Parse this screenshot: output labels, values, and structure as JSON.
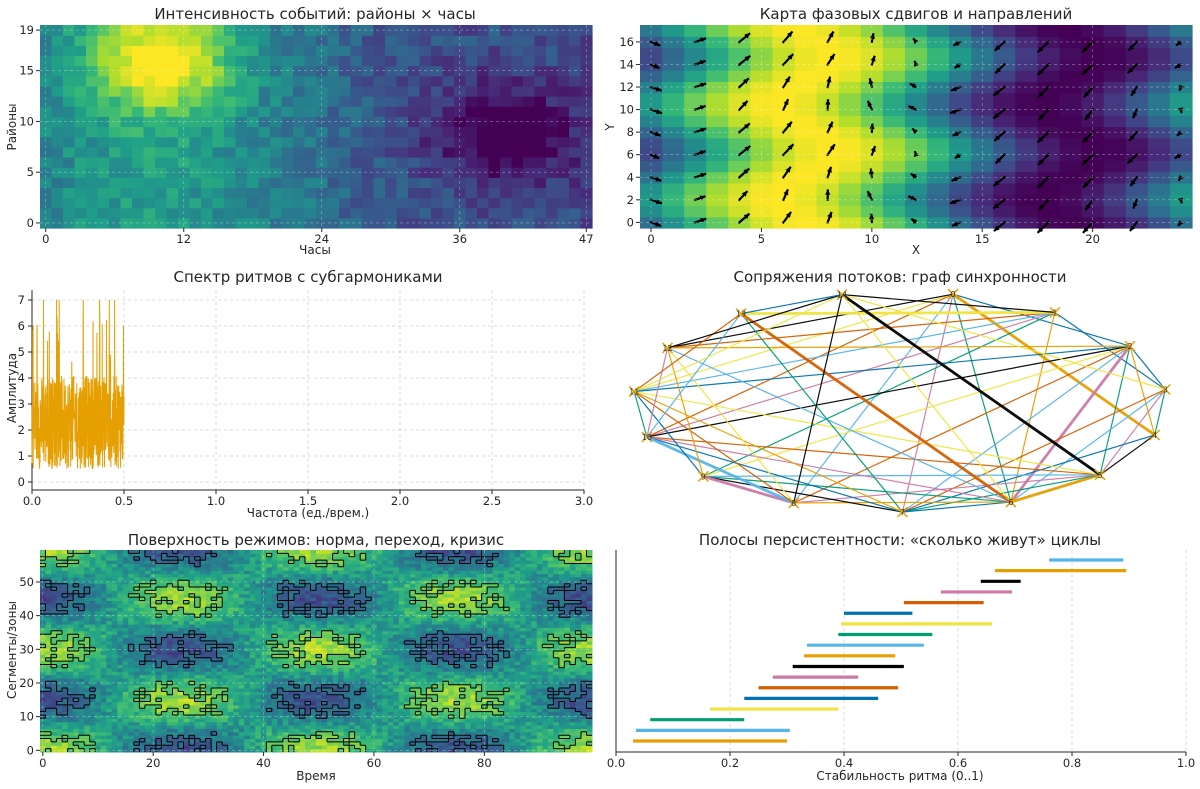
{
  "chart_data": [
    {
      "type": "heatmap",
      "title": "Интенсивность событий: районы × часы",
      "xlabel": "Часы",
      "ylabel": "Районы",
      "xlim": [
        0,
        47
      ],
      "ylim": [
        0,
        19
      ],
      "x_ticks": [
        "0",
        "12",
        "24",
        "36",
        "47"
      ],
      "y_ticks": [
        "0",
        "5",
        "10",
        "15",
        "19"
      ],
      "grid": true,
      "colormap": "viridis",
      "hotspot": {
        "hours": [
          6,
          14
        ],
        "districts": [
          12,
          19
        ]
      },
      "coldspot": {
        "hours": [
          33,
          47
        ],
        "districts": [
          5,
          14
        ]
      }
    },
    {
      "type": "heatmap",
      "title": "Карта фазовых сдвигов и направлений",
      "xlabel": "X",
      "ylabel": "Y",
      "xlim": [
        0,
        24
      ],
      "ylim": [
        0,
        17
      ],
      "x_ticks": [
        "0",
        "5",
        "10",
        "15",
        "20"
      ],
      "y_ticks": [
        "0",
        "2",
        "4",
        "6",
        "8",
        "10",
        "12",
        "14",
        "16"
      ],
      "grid": true,
      "colormap": "viridis",
      "overlay": "quiver",
      "phase_peak_x": 7,
      "phase_trough_x": 19
    },
    {
      "type": "line",
      "title": "Спектр ритмов с субгармониками",
      "xlabel": "Частота (ед./врем.)",
      "ylabel": "Амплитуда",
      "xlim": [
        0,
        3.0
      ],
      "ylim": [
        0,
        7
      ],
      "x_ticks": [
        "0.0",
        "0.5",
        "1.0",
        "1.5",
        "2.0",
        "2.5",
        "3.0"
      ],
      "y_ticks": [
        "0",
        "1",
        "2",
        "3",
        "4",
        "5",
        "6",
        "7"
      ],
      "grid": true,
      "color": "#E69F00",
      "freq_range": [
        0,
        0.5
      ],
      "amplitude_range": [
        0,
        7
      ]
    },
    {
      "type": "network",
      "title": "Сопряжения потоков: граф синхронности",
      "nodes": [
        "0",
        "1",
        "2",
        "3",
        "4",
        "5",
        "6",
        "7",
        "8",
        "9",
        "10",
        "11",
        "12",
        "13",
        "14"
      ],
      "edge_colors": [
        "#0072B2",
        "#E69F00",
        "#009E73",
        "#CC79A7",
        "#56B4E9",
        "#D55E00",
        "#F0E442",
        "#000000"
      ]
    },
    {
      "type": "heatmap",
      "title": "Поверхность режимов: норма, переход, кризис",
      "xlabel": "Время",
      "ylabel": "Сегменты/зоны",
      "xlim": [
        0,
        99
      ],
      "ylim": [
        0,
        59
      ],
      "x_ticks": [
        "0",
        "20",
        "40",
        "60",
        "80"
      ],
      "y_ticks": [
        "0",
        "10",
        "20",
        "30",
        "40",
        "50"
      ],
      "grid": true,
      "colormap": "viridis",
      "overlay": "contour"
    },
    {
      "type": "bar",
      "title": "Полосы персистентности: «сколько живут» циклы",
      "xlabel": "Стабильность ритма (0..1)",
      "xlim": [
        0,
        1
      ],
      "x_ticks": [
        "0.0",
        "0.2",
        "0.4",
        "0.6",
        "0.8",
        "1.0"
      ],
      "grid": true,
      "bars": [
        {
          "start": 0.03,
          "end": 0.3,
          "color": "#E69F00"
        },
        {
          "start": 0.035,
          "end": 0.305,
          "color": "#56B4E9"
        },
        {
          "start": 0.06,
          "end": 0.225,
          "color": "#009E73"
        },
        {
          "start": 0.165,
          "end": 0.39,
          "color": "#F0E442"
        },
        {
          "start": 0.225,
          "end": 0.46,
          "color": "#0072B2"
        },
        {
          "start": 0.25,
          "end": 0.495,
          "color": "#D55E00"
        },
        {
          "start": 0.275,
          "end": 0.425,
          "color": "#CC79A7"
        },
        {
          "start": 0.31,
          "end": 0.505,
          "color": "#000000"
        },
        {
          "start": 0.33,
          "end": 0.49,
          "color": "#E69F00"
        },
        {
          "start": 0.335,
          "end": 0.54,
          "color": "#56B4E9"
        },
        {
          "start": 0.39,
          "end": 0.555,
          "color": "#009E73"
        },
        {
          "start": 0.395,
          "end": 0.66,
          "color": "#F0E442"
        },
        {
          "start": 0.4,
          "end": 0.52,
          "color": "#0072B2"
        },
        {
          "start": 0.505,
          "end": 0.645,
          "color": "#D55E00"
        },
        {
          "start": 0.57,
          "end": 0.695,
          "color": "#CC79A7"
        },
        {
          "start": 0.64,
          "end": 0.71,
          "color": "#000000"
        },
        {
          "start": 0.665,
          "end": 0.895,
          "color": "#E69F00"
        },
        {
          "start": 0.76,
          "end": 0.89,
          "color": "#56B4E9"
        }
      ]
    }
  ]
}
